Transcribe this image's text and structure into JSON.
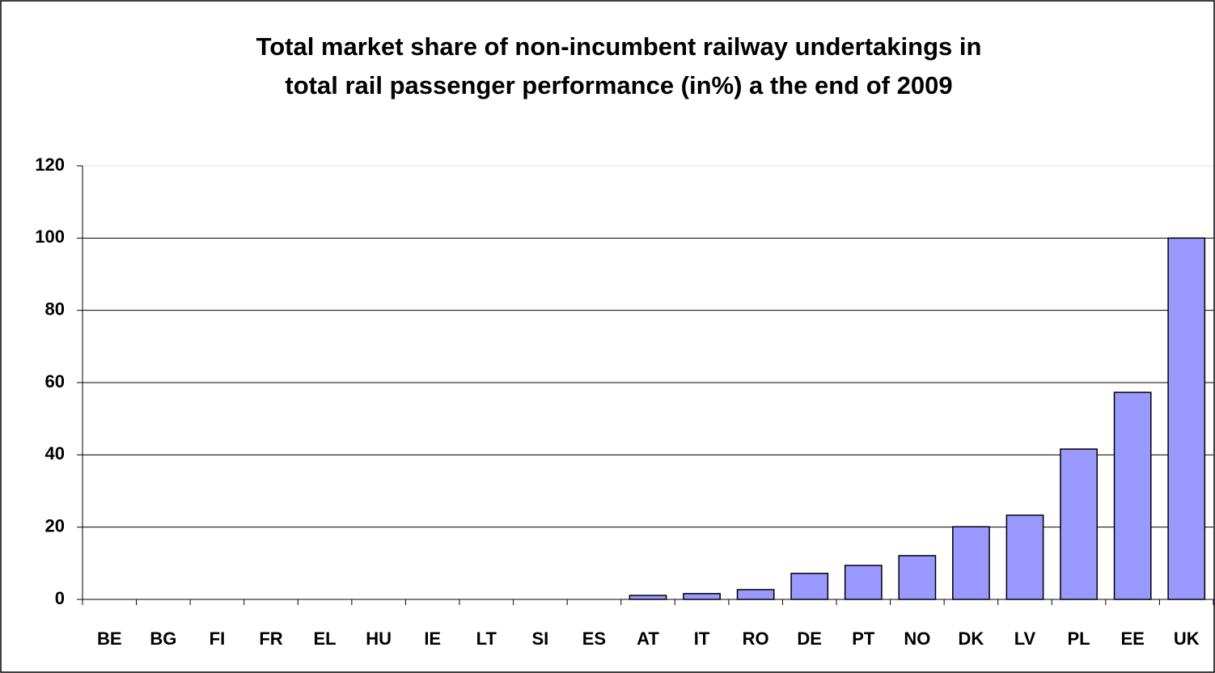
{
  "chart_data": {
    "type": "bar",
    "title": [
      "Total market share of non-incumbent railway undertakings in",
      "total rail passenger performance (in%) a the end of 2009"
    ],
    "categories": [
      "BE",
      "BG",
      "FI",
      "FR",
      "EL",
      "HU",
      "IE",
      "LT",
      "SI",
      "ES",
      "AT",
      "IT",
      "RO",
      "DE",
      "PT",
      "NO",
      "DK",
      "LV",
      "PL",
      "EE",
      "UK"
    ],
    "values": [
      0,
      0,
      0,
      0,
      0,
      0,
      0,
      0,
      0,
      0,
      1.1,
      1.6,
      2.7,
      7.2,
      9.4,
      12.1,
      20.1,
      23.3,
      41.6,
      57.3,
      100
    ],
    "color": "#9999ff",
    "ylim": [
      0,
      120
    ],
    "yticks": [
      0,
      20,
      40,
      60,
      80,
      100,
      120
    ],
    "grid": true
  }
}
